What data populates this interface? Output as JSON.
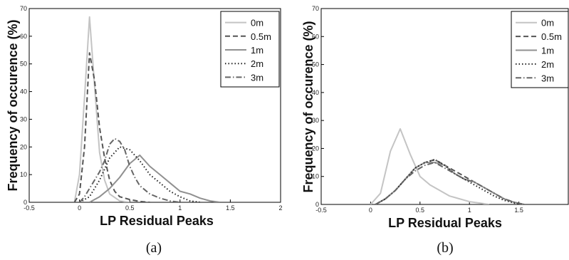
{
  "chart_data": [
    {
      "type": "line",
      "panel_caption": "(a)",
      "xlabel": "LP Residual Peaks",
      "ylabel": "Frequency of occurence (%)",
      "xlim": [
        -0.5,
        2
      ],
      "ylim": [
        0,
        70
      ],
      "xticks": [
        -0.5,
        0,
        0.5,
        1,
        1.5,
        2
      ],
      "xtick_labels": [
        "-0.5",
        "0",
        "0.5",
        "1",
        "1.5",
        "2"
      ],
      "yticks": [
        0,
        10,
        20,
        30,
        40,
        50,
        60,
        70
      ],
      "ytick_labels": [
        "0",
        "10",
        "20",
        "30",
        "40",
        "50",
        "60",
        "70"
      ],
      "grid": false,
      "legend_position": "top-right",
      "series": [
        {
          "name": "0m",
          "color": "#c4c4c4",
          "dash": "solid",
          "x": [
            -0.05,
            0,
            0.05,
            0.1,
            0.15,
            0.2,
            0.25,
            0.3,
            0.4,
            0.5
          ],
          "y": [
            0,
            10,
            38,
            67,
            42,
            18,
            8,
            3,
            0.5,
            0
          ]
        },
        {
          "name": "0.5m",
          "color": "#555555",
          "dash": "dashed",
          "x": [
            -0.05,
            0,
            0.05,
            0.1,
            0.15,
            0.2,
            0.25,
            0.3,
            0.35,
            0.4,
            0.5,
            0.6,
            0.7
          ],
          "y": [
            0,
            3,
            20,
            54,
            44,
            27,
            16,
            8,
            4,
            2,
            1,
            0.3,
            0
          ]
        },
        {
          "name": "1m",
          "color": "#909090",
          "dash": "solid",
          "x": [
            0.1,
            0.2,
            0.3,
            0.4,
            0.5,
            0.6,
            0.7,
            0.8,
            0.9,
            1.0,
            1.1,
            1.2,
            1.3,
            1.4
          ],
          "y": [
            0,
            2,
            5,
            9,
            14,
            17,
            13,
            10,
            7,
            4,
            3,
            1.5,
            0.5,
            0
          ]
        },
        {
          "name": "2m",
          "color": "#222222",
          "dash": "dotted",
          "x": [
            0,
            0.1,
            0.2,
            0.3,
            0.4,
            0.5,
            0.6,
            0.7,
            0.8,
            0.9,
            1.0,
            1.1,
            1.2
          ],
          "y": [
            0,
            2,
            8,
            16,
            20,
            19,
            15,
            10,
            7,
            4,
            2,
            0.5,
            0
          ]
        },
        {
          "name": "3m",
          "color": "#666666",
          "dash": "dashdot",
          "x": [
            0,
            0.05,
            0.1,
            0.15,
            0.2,
            0.25,
            0.3,
            0.35,
            0.4,
            0.45,
            0.5,
            0.55,
            0.6,
            0.7,
            0.8,
            0.9,
            1.0
          ],
          "y": [
            0,
            2,
            5,
            8,
            11,
            15,
            21,
            23,
            22,
            19,
            13,
            9,
            6,
            3,
            1.5,
            0.5,
            0
          ]
        }
      ]
    },
    {
      "type": "line",
      "panel_caption": "(b)",
      "xlabel": "LP Residual Peaks",
      "ylabel": "Frequency of occurence (%)",
      "xlim": [
        -0.5,
        2
      ],
      "ylim": [
        0,
        70
      ],
      "xticks": [
        -0.5,
        0,
        0.5,
        1,
        1.5
      ],
      "xtick_labels": [
        "-0.5",
        "0",
        "0.5",
        "1",
        "1.5"
      ],
      "yticks": [
        0,
        10,
        20,
        30,
        40,
        50,
        60,
        70
      ],
      "ytick_labels": [
        "0",
        "10",
        "20",
        "30",
        "40",
        "50",
        "60",
        "70"
      ],
      "grid": false,
      "legend_position": "top-right",
      "series": [
        {
          "name": "0m",
          "color": "#c4c4c4",
          "dash": "solid",
          "x": [
            0,
            0.1,
            0.2,
            0.3,
            0.4,
            0.5,
            0.6,
            0.7,
            0.8,
            0.9,
            1.0,
            1.1,
            1.2
          ],
          "y": [
            0,
            4,
            19,
            27,
            18,
            10,
            7,
            5,
            3,
            2,
            1,
            0.5,
            0
          ]
        },
        {
          "name": "0.5m",
          "color": "#555555",
          "dash": "dashed",
          "x": [
            0.05,
            0.15,
            0.25,
            0.35,
            0.45,
            0.55,
            0.65,
            0.75,
            0.85,
            0.95,
            1.05,
            1.15,
            1.25,
            1.35,
            1.45,
            1.55
          ],
          "y": [
            0,
            2,
            5,
            9,
            13,
            15,
            16,
            14,
            12,
            10,
            8,
            6,
            4,
            2,
            0.8,
            0
          ]
        },
        {
          "name": "1m",
          "color": "#909090",
          "dash": "solid",
          "x": [
            0.05,
            0.15,
            0.25,
            0.35,
            0.45,
            0.55,
            0.65,
            0.75,
            0.85,
            0.95,
            1.05,
            1.15,
            1.25,
            1.35,
            1.45,
            1.55
          ],
          "y": [
            0,
            2,
            5,
            9,
            13,
            15,
            15,
            14,
            11,
            9,
            8,
            6,
            4,
            2,
            0.8,
            0
          ]
        },
        {
          "name": "2m",
          "color": "#222222",
          "dash": "dotted",
          "x": [
            0.05,
            0.15,
            0.25,
            0.35,
            0.45,
            0.55,
            0.65,
            0.75,
            0.85,
            0.95,
            1.05,
            1.15,
            1.25,
            1.35,
            1.45,
            1.55
          ],
          "y": [
            0,
            2,
            5,
            9,
            13,
            15,
            16,
            14,
            11,
            9,
            7,
            5,
            3,
            1.5,
            0.5,
            0
          ]
        },
        {
          "name": "3m",
          "color": "#666666",
          "dash": "dashdot",
          "x": [
            0.05,
            0.15,
            0.25,
            0.35,
            0.45,
            0.55,
            0.65,
            0.75,
            0.85,
            0.95,
            1.05,
            1.15,
            1.25,
            1.35,
            1.45,
            1.55
          ],
          "y": [
            0,
            2,
            5,
            9,
            12,
            14,
            15,
            13,
            11,
            9,
            8,
            6,
            4,
            2,
            0.8,
            0
          ]
        }
      ]
    }
  ]
}
